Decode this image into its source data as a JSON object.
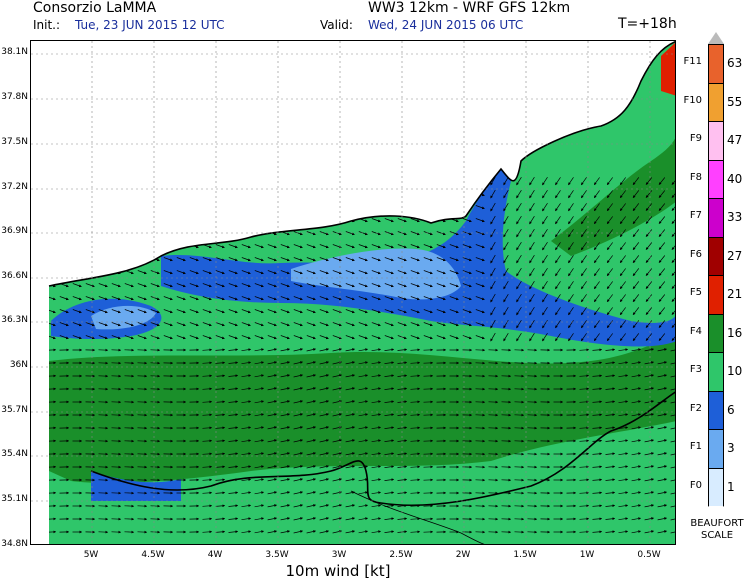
{
  "header": {
    "org": "Consorzio LaMMA",
    "model": "WW3 12km - WRF GFS 12km",
    "init_label": "Init.:",
    "init_value": "Tue, 23 JUN 2015  12 UTC",
    "valid_label": "Valid:",
    "valid_value": "Wed, 24 JUN 2015  06 UTC",
    "lead_time": "T=+18h"
  },
  "map": {
    "latitude_labels": [
      "38.1N",
      "37.8N",
      "37.5N",
      "37.2N",
      "36.9N",
      "36.6N",
      "36.3N",
      "36N",
      "35.7N",
      "35.4N",
      "35.1N",
      "34.8N"
    ],
    "longitude_labels": [
      "5W",
      "4.5W",
      "4W",
      "3.5W",
      "3W",
      "2.5W",
      "2W",
      "1.5W",
      "1W",
      "0.5W"
    ],
    "footer": "10m wind [kt]"
  },
  "legend": {
    "beaufort_labels": [
      "F11",
      "F10",
      "F9",
      "F8",
      "F7",
      "F6",
      "F5",
      "F4",
      "F3",
      "F2",
      "F1",
      "F0"
    ],
    "kt_values": [
      "63",
      "55",
      "47",
      "40",
      "33",
      "27",
      "21",
      "16",
      "10",
      "6",
      "3",
      "1"
    ],
    "colors": [
      "#e8622c",
      "#f0a030",
      "#ffc0f0",
      "#ff40ff",
      "#cc00cc",
      "#a00000",
      "#e02000",
      "#1a8f2a",
      "#2fc66a",
      "#1e5fd8",
      "#6aaaf0",
      "#d8ecff"
    ],
    "title_line1": "BEAUFORT",
    "title_line2": "SCALE"
  },
  "colors": {
    "land": "#ffffff",
    "calm_wind": "#6aaaf0",
    "light_wind": "#1e5fd8",
    "moderate_wind": "#2fc66a",
    "fresh_wind": "#1a8f2a",
    "strong_wind": "#e02000"
  }
}
